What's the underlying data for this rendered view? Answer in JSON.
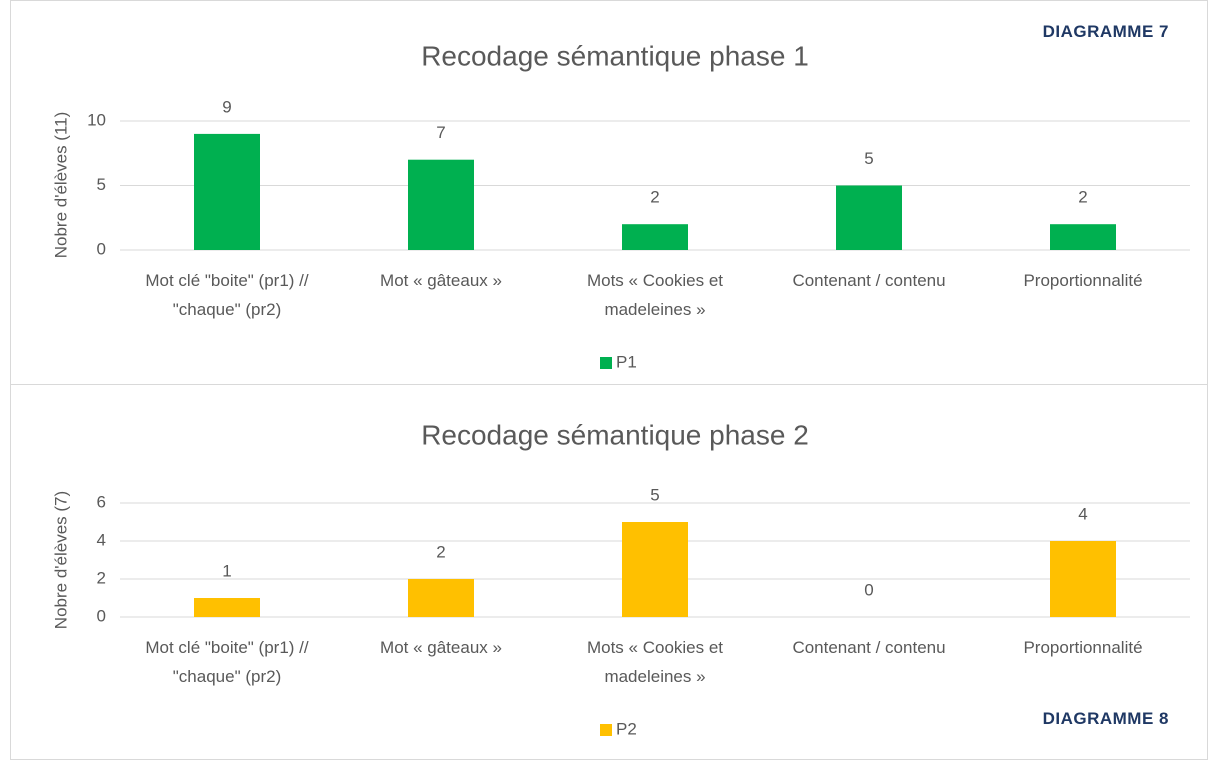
{
  "chart_data": [
    {
      "type": "bar",
      "title": "Recodage sémantique phase 1",
      "annotation": "DIAGRAMME 7",
      "y_label": "Nobre d'élèves (11)",
      "categories": [
        "Mot clé \"boite\" (pr1) // \"chaque\" (pr2)",
        "Mot « gâteaux »",
        "Mots « Cookies et madeleines »",
        "Contenant / contenu",
        "Proportionnalité"
      ],
      "series": [
        {
          "name": "P1",
          "color": "#00b050",
          "values": [
            9,
            7,
            2,
            5,
            2
          ]
        }
      ],
      "ylim": [
        0,
        10
      ],
      "yticks": [
        0,
        5,
        10
      ],
      "grid": true,
      "legend": "bottom"
    },
    {
      "type": "bar",
      "title": "Recodage sémantique phase 2",
      "annotation": "DIAGRAMME 8",
      "y_label": "Nobre d'élèves (7)",
      "categories": [
        "Mot clé \"boite\" (pr1) // \"chaque\" (pr2)",
        "Mot « gâteaux »",
        "Mots « Cookies et madeleines »",
        "Contenant / contenu",
        "Proportionnalité"
      ],
      "series": [
        {
          "name": "P2",
          "color": "#ffc000",
          "values": [
            1,
            2,
            5,
            0,
            4
          ]
        }
      ],
      "ylim": [
        0,
        6
      ],
      "yticks": [
        0,
        2,
        4,
        6
      ],
      "grid": true,
      "legend": "bottom"
    }
  ]
}
